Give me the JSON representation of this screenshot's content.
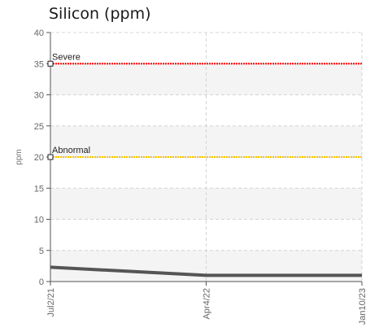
{
  "chart_data": {
    "type": "line",
    "title": "Silicon (ppm)",
    "ylabel": "ppm",
    "xlabel": "",
    "ylim": [
      0,
      40
    ],
    "yticks": [
      0,
      5,
      10,
      15,
      20,
      25,
      30,
      35,
      40
    ],
    "x": [
      "Jul2/21",
      "Apr4/22",
      "Jan10/23"
    ],
    "series": [
      {
        "values": [
          2.3,
          1.0,
          1.0
        ],
        "color": "#555555"
      }
    ],
    "thresholds": [
      {
        "label": "Severe",
        "value": 35,
        "color": "#ff0000"
      },
      {
        "label": "Abnormal",
        "value": 20,
        "color": "#f5c400"
      }
    ],
    "grid": true,
    "legend": "none"
  }
}
